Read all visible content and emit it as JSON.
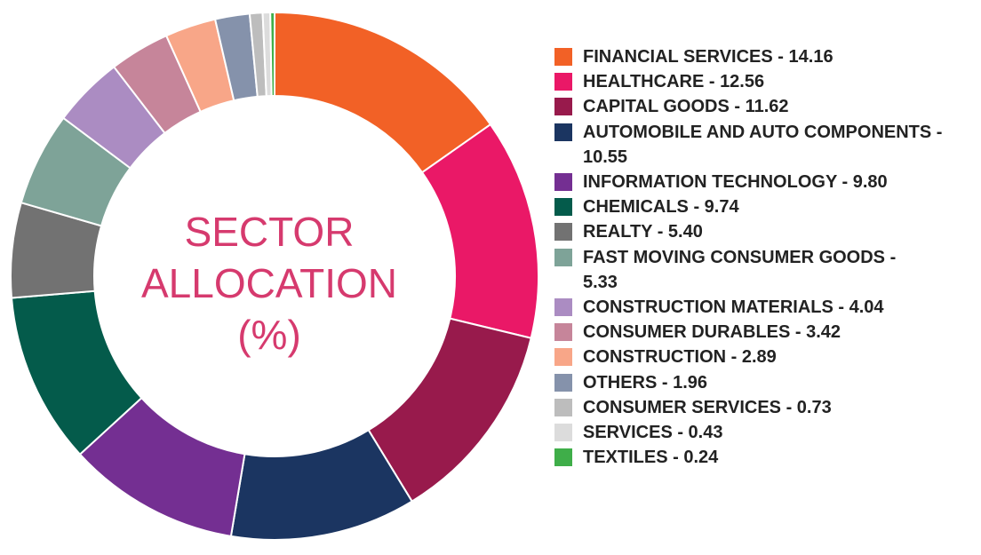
{
  "chart_data": {
    "type": "pie",
    "variant": "donut",
    "title_lines": [
      "SECTOR",
      "ALLOCATION",
      "(%)"
    ],
    "title_color": "#d63a6e",
    "legend_position": "right",
    "slices": [
      {
        "label": "FINANCIAL SERVICES - 14.16",
        "value": 14.16,
        "color": "#f26126"
      },
      {
        "label": "HEALTHCARE - 12.56",
        "value": 12.56,
        "color": "#ea1867"
      },
      {
        "label": "CAPITAL GOODS - 11.62",
        "value": 11.62,
        "color": "#981a4c"
      },
      {
        "label": "AUTOMOBILE AND AUTO COMPONENTS - 10.55",
        "label_lines": [
          "AUTOMOBILE AND AUTO COMPONENTS -",
          "10.55"
        ],
        "value": 10.55,
        "color": "#1b3561"
      },
      {
        "label": "INFORMATION TECHNOLOGY - 9.80",
        "value": 9.8,
        "color": "#742f92"
      },
      {
        "label": "CHEMICALS - 9.74",
        "value": 9.74,
        "color": "#045b4b"
      },
      {
        "label": "REALTY - 5.40",
        "value": 5.4,
        "color": "#727272"
      },
      {
        "label": "FAST MOVING CONSUMER GOODS - 5.33",
        "label_lines": [
          "FAST MOVING CONSUMER GOODS -",
          "5.33"
        ],
        "value": 5.33,
        "color": "#7ea398"
      },
      {
        "label": "CONSTRUCTION MATERIALS - 4.04",
        "value": 4.04,
        "color": "#ab8cc2"
      },
      {
        "label": "CONSUMER DURABLES - 3.42",
        "value": 3.42,
        "color": "#c6859a"
      },
      {
        "label": "CONSTRUCTION - 2.89",
        "value": 2.89,
        "color": "#f8a688"
      },
      {
        "label": "OTHERS - 1.96",
        "value": 1.96,
        "color": "#8592ab"
      },
      {
        "label": "CONSUMER SERVICES - 0.73",
        "value": 0.73,
        "color": "#bdbdbd"
      },
      {
        "label": "SERVICES - 0.43",
        "value": 0.43,
        "color": "#dcdcdc"
      },
      {
        "label": "TEXTILES - 0.24",
        "value": 0.24,
        "color": "#3fae49"
      }
    ]
  }
}
